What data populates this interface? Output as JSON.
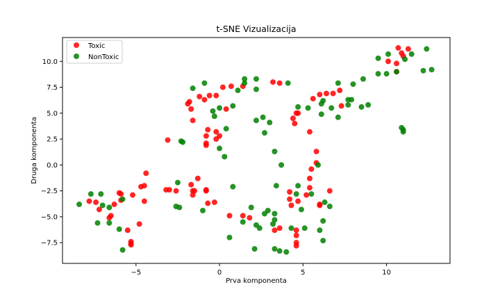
{
  "chart_data": {
    "type": "scatter",
    "title": "t-SNE Vizualizacija",
    "xlabel": "Prva komponenta",
    "ylabel": "Druga komponenta",
    "xlim": [
      -9.4,
      13.8
    ],
    "ylim": [
      -9.5,
      12.3
    ],
    "xticks": [
      -5,
      0,
      5,
      10
    ],
    "yticks": [
      -7.5,
      -5.0,
      -2.5,
      0.0,
      2.5,
      5.0,
      7.5,
      10.0
    ],
    "xtick_labels": [
      "−5",
      "0",
      "5",
      "10"
    ],
    "ytick_labels": [
      "−7.5",
      "−5.0",
      "−2.5",
      "0.0",
      "2.5",
      "5.0",
      "7.5",
      "10.0"
    ],
    "grid": false,
    "legend_position": "top-left",
    "series": [
      {
        "name": "Toxic",
        "color": "#ff0000",
        "points": [
          [
            10.7,
            11.3
          ],
          [
            11.3,
            11.2
          ],
          [
            10.9,
            10.8
          ],
          [
            11.0,
            10.5
          ],
          [
            10.1,
            10.0
          ],
          [
            10.6,
            9.8
          ],
          [
            10.6,
            9.0
          ],
          [
            7.2,
            7.2
          ],
          [
            6.4,
            6.9
          ],
          [
            6.0,
            6.8
          ],
          [
            5.6,
            6.4
          ],
          [
            6.8,
            6.9
          ],
          [
            7.3,
            5.7
          ],
          [
            4.7,
            5.0
          ],
          [
            4.6,
            5.0
          ],
          [
            4.4,
            4.5
          ],
          [
            4.5,
            4.0
          ],
          [
            5.4,
            3.2
          ],
          [
            5.8,
            1.3
          ],
          [
            3.2,
            8.0
          ],
          [
            3.6,
            7.9
          ],
          [
            1.4,
            7.6
          ],
          [
            0.7,
            7.6
          ],
          [
            0.2,
            7.5
          ],
          [
            -1.2,
            6.6
          ],
          [
            -0.6,
            6.7
          ],
          [
            -0.9,
            6.3
          ],
          [
            -0.2,
            6.7
          ],
          [
            0.4,
            5.4
          ],
          [
            -1.8,
            6.1
          ],
          [
            -1.9,
            5.9
          ],
          [
            -1.7,
            5.4
          ],
          [
            -1.6,
            4.3
          ],
          [
            -0.7,
            3.4
          ],
          [
            -0.2,
            3.2
          ],
          [
            -0.8,
            2.8
          ],
          [
            0.0,
            2.8
          ],
          [
            -0.2,
            2.5
          ],
          [
            -0.8,
            2.1
          ],
          [
            -0.8,
            1.9
          ],
          [
            -3.1,
            2.4
          ],
          [
            -4.4,
            -0.8
          ],
          [
            -4.7,
            -2.1
          ],
          [
            -4.5,
            -2.0
          ],
          [
            -5.2,
            -2.9
          ],
          [
            -4.5,
            -3.5
          ],
          [
            -4.8,
            -5.7
          ],
          [
            -5.9,
            -2.8
          ],
          [
            -6.0,
            -2.7
          ],
          [
            -5.9,
            -3.4
          ],
          [
            -5.5,
            -6.3
          ],
          [
            -5.3,
            -7.4
          ],
          [
            -5.3,
            -7.6
          ],
          [
            -5.3,
            -7.7
          ],
          [
            -6.3,
            -3.8
          ],
          [
            -6.5,
            -4.9
          ],
          [
            -6.6,
            -5.1
          ],
          [
            -7.4,
            -3.6
          ],
          [
            -7.2,
            -4.3
          ],
          [
            -7.8,
            -3.5
          ],
          [
            -3.2,
            -2.4
          ],
          [
            -3.0,
            -2.4
          ],
          [
            -2.6,
            -2.5
          ],
          [
            -1.7,
            -1.9
          ],
          [
            -1.6,
            -2.5
          ],
          [
            -1.5,
            -2.5
          ],
          [
            -1.6,
            -2.9
          ],
          [
            -1.3,
            -1.3
          ],
          [
            -0.8,
            -2.4
          ],
          [
            -0.8,
            -2.5
          ],
          [
            -0.7,
            -3.7
          ],
          [
            -0.3,
            -3.6
          ],
          [
            0.6,
            -4.9
          ],
          [
            1.4,
            -4.9
          ],
          [
            1.8,
            -5.1
          ],
          [
            3.3,
            -6.3
          ],
          [
            3.6,
            -6.1
          ],
          [
            4.2,
            -2.6
          ],
          [
            4.2,
            -3.3
          ],
          [
            4.3,
            -3.9
          ],
          [
            4.7,
            -3.5
          ],
          [
            4.6,
            -6.3
          ],
          [
            4.6,
            -6.8
          ],
          [
            4.6,
            -7.5
          ],
          [
            4.6,
            -7.8
          ],
          [
            5.2,
            -2.9
          ],
          [
            5.4,
            -1.3
          ],
          [
            5.4,
            -2.2
          ],
          [
            5.5,
            -0.4
          ],
          [
            5.8,
            0.2
          ],
          [
            6.0,
            -3.8
          ],
          [
            6.0,
            -3.9
          ],
          [
            6.6,
            -2.5
          ]
        ]
      },
      {
        "name": "NonToxic",
        "color": "#008000",
        "points": [
          [
            12.4,
            11.2
          ],
          [
            11.5,
            10.7
          ],
          [
            10.1,
            10.7
          ],
          [
            9.5,
            10.3
          ],
          [
            11.1,
            10.2
          ],
          [
            12.7,
            9.2
          ],
          [
            12.2,
            9.1
          ],
          [
            10.6,
            9.0
          ],
          [
            9.5,
            8.8
          ],
          [
            10.0,
            8.8
          ],
          [
            8.6,
            8.3
          ],
          [
            7.1,
            7.9
          ],
          [
            8.0,
            7.8
          ],
          [
            7.7,
            6.3
          ],
          [
            7.9,
            6.3
          ],
          [
            6.2,
            6.2
          ],
          [
            6.1,
            5.9
          ],
          [
            7.7,
            5.8
          ],
          [
            8.5,
            5.6
          ],
          [
            8.9,
            5.8
          ],
          [
            6.7,
            5.5
          ],
          [
            5.3,
            5.5
          ],
          [
            4.7,
            5.6
          ],
          [
            6.1,
            4.9
          ],
          [
            7.1,
            4.6
          ],
          [
            10.9,
            3.6
          ],
          [
            11.0,
            3.4
          ],
          [
            11.0,
            3.2
          ],
          [
            4.1,
            7.9
          ],
          [
            2.2,
            8.3
          ],
          [
            2.2,
            7.3
          ],
          [
            1.5,
            8.3
          ],
          [
            1.5,
            7.9
          ],
          [
            1.1,
            7.2
          ],
          [
            -0.9,
            7.9
          ],
          [
            -1.6,
            7.4
          ],
          [
            0.8,
            5.7
          ],
          [
            0.0,
            5.5
          ],
          [
            -0.4,
            5.2
          ],
          [
            -0.3,
            4.7
          ],
          [
            2.2,
            4.3
          ],
          [
            2.6,
            4.6
          ],
          [
            3.0,
            4.1
          ],
          [
            2.7,
            3.1
          ],
          [
            0.4,
            3.5
          ],
          [
            -2.2,
            2.2
          ],
          [
            -2.3,
            2.3
          ],
          [
            0.0,
            1.6
          ],
          [
            0.3,
            0.8
          ],
          [
            3.3,
            1.3
          ],
          [
            3.7,
            0.0
          ],
          [
            5.9,
            0.0
          ],
          [
            3.4,
            -2.0
          ],
          [
            4.7,
            -2.0
          ],
          [
            4.6,
            -2.8
          ],
          [
            5.5,
            -2.8
          ],
          [
            4.9,
            -4.3
          ],
          [
            6.3,
            -3.6
          ],
          [
            6.6,
            -4.0
          ],
          [
            6.2,
            -5.4
          ],
          [
            6.0,
            -6.3
          ],
          [
            6.2,
            -7.3
          ],
          [
            5.1,
            -6.1
          ],
          [
            4.3,
            -6.1
          ],
          [
            3.3,
            -4.7
          ],
          [
            3.3,
            -5.3
          ],
          [
            3.2,
            -5.7
          ],
          [
            2.9,
            -4.4
          ],
          [
            2.7,
            -4.7
          ],
          [
            2.4,
            -6.1
          ],
          [
            2.2,
            -5.8
          ],
          [
            1.9,
            -4.1
          ],
          [
            1.4,
            -5.5
          ],
          [
            0.8,
            -2.1
          ],
          [
            0.6,
            -7.0
          ],
          [
            2.1,
            -8.1
          ],
          [
            3.3,
            -8.1
          ],
          [
            3.6,
            -8.3
          ],
          [
            4.0,
            -8.4
          ],
          [
            -1.0,
            -4.4
          ],
          [
            -2.5,
            -1.7
          ],
          [
            -2.6,
            -4.0
          ],
          [
            -2.4,
            -4.1
          ],
          [
            -5.8,
            -3.3
          ],
          [
            -6.6,
            -4.1
          ],
          [
            -6.6,
            -5.6
          ],
          [
            -7.0,
            -3.9
          ],
          [
            -7.1,
            -2.8
          ],
          [
            -7.3,
            -5.6
          ],
          [
            -7.7,
            -2.8
          ],
          [
            -8.4,
            -3.8
          ],
          [
            -6.0,
            -6.2
          ],
          [
            -5.8,
            -8.2
          ]
        ]
      }
    ]
  }
}
